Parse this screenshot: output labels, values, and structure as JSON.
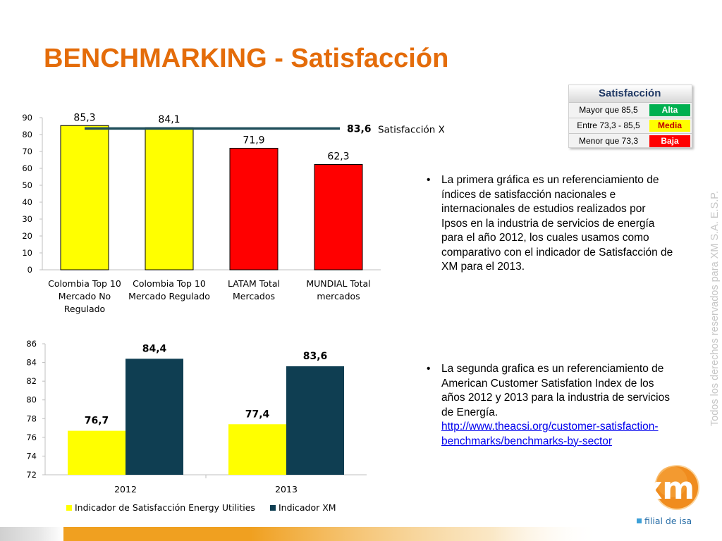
{
  "slide": {
    "title": "BENCHMARKING - Satisfacción",
    "vertical_text": "Todos los derechos reservados para XM S.A. E.S.P."
  },
  "chart_data": [
    {
      "type": "bar",
      "categories": [
        "Colombia Top 10 Mercado No Regulado",
        "Colombia Top 10 Mercado Regulado",
        "LATAM Total Mercados",
        "MUNDIAL Total mercados"
      ],
      "category_lines": [
        [
          "Colombia Top 10",
          "Mercado No",
          "Regulado"
        ],
        [
          "Colombia Top 10",
          "Mercado Regulado"
        ],
        [
          "LATAM Total",
          "Mercados"
        ],
        [
          "MUNDIAL Total",
          "mercados"
        ]
      ],
      "values": [
        85.3,
        84.1,
        71.9,
        62.3
      ],
      "value_labels": [
        "85,3",
        "84,1",
        "71,9",
        "62,3"
      ],
      "bar_colors": [
        "#ffff00",
        "#ffff00",
        "#ff0000",
        "#ff0000"
      ],
      "ylim": [
        0,
        90
      ],
      "yticks": [
        0,
        10,
        20,
        30,
        40,
        50,
        60,
        70,
        80,
        90
      ],
      "reference_line": {
        "value": 83.6,
        "value_label": "83,6",
        "label": "Satisfacción XM",
        "color": "#1f4e5a"
      },
      "grid": false
    },
    {
      "type": "bar",
      "categories": [
        "2012",
        "2013"
      ],
      "series": [
        {
          "name": "Indicador de Satisfacción Energy Utilities",
          "values": [
            76.7,
            77.4
          ],
          "value_labels": [
            "76,7",
            "77,4"
          ],
          "color": "#ffff00"
        },
        {
          "name": "Indicador XM",
          "values": [
            84.4,
            83.6
          ],
          "value_labels": [
            "84,4",
            "83,6"
          ],
          "color": "#0f3e52"
        }
      ],
      "ylim": [
        72,
        86
      ],
      "yticks": [
        72,
        74,
        76,
        78,
        80,
        82,
        84,
        86
      ],
      "legend_position": "bottom",
      "grid": false
    }
  ],
  "satisfaction_table": {
    "title": "Satisfacción",
    "rows": [
      {
        "range": "Mayor que 85,5",
        "level": "Alta",
        "color": "#00b050",
        "text_color": "#ffffff"
      },
      {
        "range": "Entre 73,3 - 85,5",
        "level": "Media",
        "color": "#ffff00",
        "text_color": "#c00000"
      },
      {
        "range": "Menor que 73,3",
        "level": "Baja",
        "color": "#ff0000",
        "text_color": "#ffffff"
      }
    ]
  },
  "bullets": [
    {
      "text": "La primera gráfica es un referenciamiento de índices de satisfacción  nacionales e internacionales de estudios realizados por Ipsos en la industria de servicios de energía para el año 2012, los cuales usamos como comparativo con el indicador de Satisfacción de XM para el 2013."
    },
    {
      "text": "La segunda grafica es un referenciamiento de American Customer Satisfation Index de los años 2012 y 2013 para la industria de servicios de Energía.",
      "link": "http://www.theacsi.org/customer-satisfaction-benchmarks/benchmarks-by-sector"
    }
  ],
  "bullet_symbol": "•",
  "logo": {
    "text": "xm",
    "subtitle": "filial de isa",
    "icon": "xm-logo-icon",
    "accent": "#f08c1e"
  },
  "colors": {
    "title": "#e46c0a",
    "bottom_bar": "#f0a020"
  }
}
